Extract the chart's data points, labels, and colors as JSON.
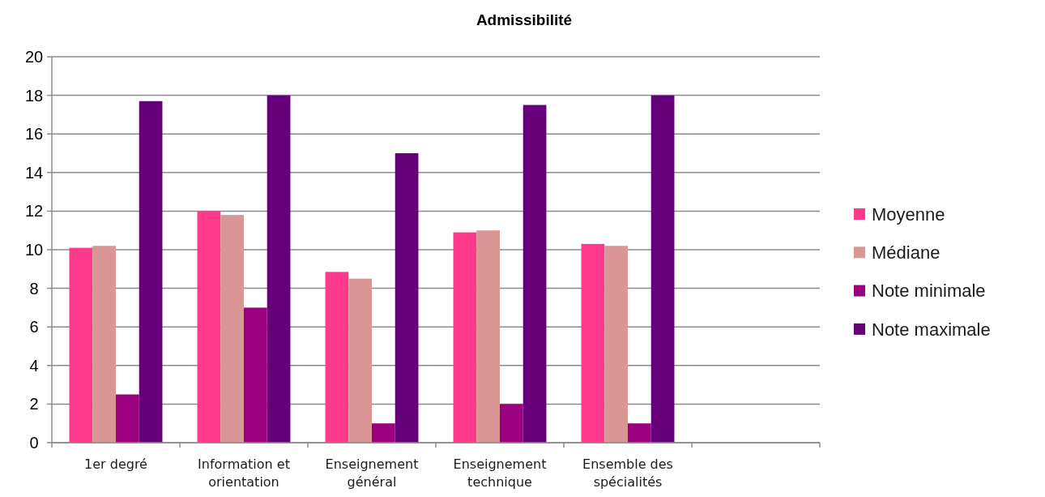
{
  "chart_data": {
    "type": "bar",
    "title": "Admissibilité",
    "categories": [
      "1er degré",
      "Information et orientation",
      "Enseignement général",
      "Enseignement technique",
      "Ensemble des spécialités",
      null
    ],
    "series": [
      {
        "name": "Moyenne",
        "color": "#ff3a8c",
        "values": [
          10.1,
          12.0,
          8.85,
          10.9,
          10.3,
          null
        ]
      },
      {
        "name": "Médiane",
        "color": "#d99694",
        "values": [
          10.2,
          11.8,
          8.5,
          11.0,
          10.2,
          null
        ]
      },
      {
        "name": "Note minimale",
        "color": "#9a0080",
        "values": [
          2.5,
          7,
          1,
          2,
          1,
          null
        ]
      },
      {
        "name": "Note maximale",
        "color": "#66007a",
        "values": [
          17.7,
          18,
          15,
          17.5,
          18,
          null
        ]
      }
    ],
    "ylim": [
      0,
      20
    ],
    "yticks": [
      0,
      2,
      4,
      6,
      8,
      10,
      12,
      14,
      16,
      18,
      20
    ],
    "grid": "y",
    "legend": "right"
  }
}
